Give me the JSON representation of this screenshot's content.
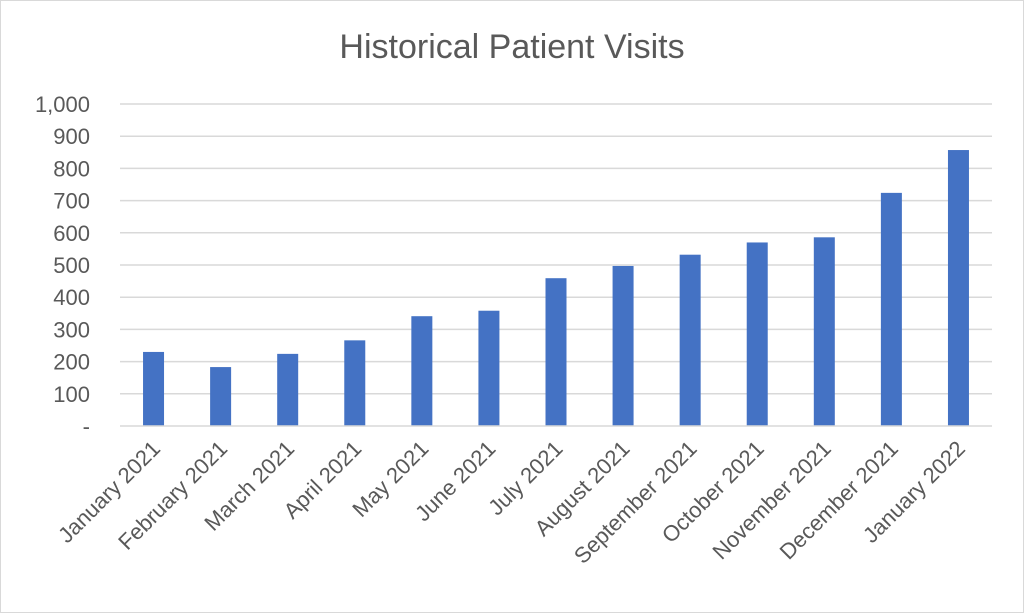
{
  "chart_data": {
    "type": "bar",
    "title": "Historical Patient Visits",
    "xlabel": "",
    "ylabel": "",
    "categories": [
      "January 2021",
      "February 2021",
      "March 2021",
      "April 2021",
      "May 2021",
      "June 2021",
      "July 2021",
      "August 2021",
      "September 2021",
      "October 2021",
      "November 2021",
      "December 2021",
      "January 2022"
    ],
    "values": [
      230,
      183,
      224,
      266,
      341,
      358,
      459,
      497,
      532,
      570,
      586,
      724,
      857
    ],
    "ylim": [
      0,
      1000
    ],
    "yticks": [
      0,
      100,
      200,
      300,
      400,
      500,
      600,
      700,
      800,
      900,
      1000
    ],
    "ytick_labels": [
      "-",
      "100",
      "200",
      "300",
      "400",
      "500",
      "600",
      "700",
      "800",
      "900",
      "1,000"
    ],
    "grid": true,
    "legend": "none",
    "colors": {
      "bar": "#4472c4",
      "grid": "#d9d9d9",
      "text": "#595959"
    }
  }
}
